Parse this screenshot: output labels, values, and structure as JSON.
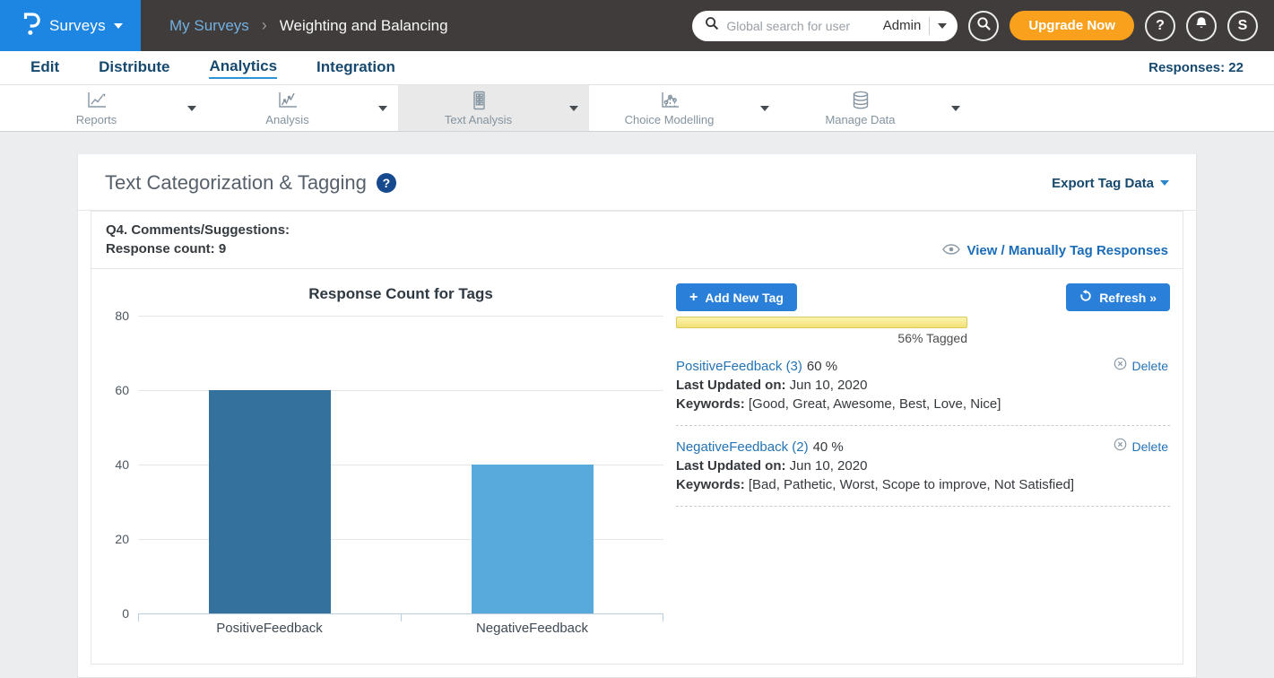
{
  "header": {
    "product": "Surveys",
    "breadcrumb": {
      "parent": "My Surveys",
      "separator": "›",
      "current": "Weighting and Balancing"
    },
    "search": {
      "placeholder": "Global search for user",
      "scope": "Admin"
    },
    "upgrade_label": "Upgrade Now",
    "help_label": "?",
    "avatar_initial": "S"
  },
  "nav": {
    "items": [
      {
        "label": "Edit",
        "active": false
      },
      {
        "label": "Distribute",
        "active": false
      },
      {
        "label": "Analytics",
        "active": true
      },
      {
        "label": "Integration",
        "active": false
      }
    ],
    "responses_label": "Responses: 22"
  },
  "tabs": [
    {
      "label": "Reports",
      "icon": "line-chart-icon",
      "active": false
    },
    {
      "label": "Analysis",
      "icon": "scatter-chart-icon",
      "active": false
    },
    {
      "label": "Text Analysis",
      "icon": "document-grid-icon",
      "active": true
    },
    {
      "label": "Choice Modelling",
      "icon": "choice-chart-icon",
      "active": false
    },
    {
      "label": "Manage Data",
      "icon": "database-icon",
      "active": false
    }
  ],
  "panel": {
    "title": "Text Categorization & Tagging",
    "help_badge": "?",
    "export_label": "Export Tag Data",
    "question_title": "Q4. Comments/Suggestions:",
    "response_count_label": "Response count: 9",
    "view_link_label": "View / Manually Tag Responses",
    "add_tag_label": "Add New Tag",
    "refresh_label": "Refresh »",
    "tagged_label": "56% Tagged",
    "tags": [
      {
        "name": "PositiveFeedback (3)",
        "percent": "60 %",
        "updated_label": "Last Updated on:",
        "updated": "Jun 10, 2020",
        "keywords_label": "Keywords:",
        "keywords": "[Good, Great, Awesome, Best, Love, Nice]",
        "delete_label": "Delete"
      },
      {
        "name": "NegativeFeedback (2)",
        "percent": "40 %",
        "updated_label": "Last Updated on:",
        "updated": "Jun 10, 2020",
        "keywords_label": "Keywords:",
        "keywords": "[Bad, Pathetic, Worst, Scope to improve, Not Satisfied]",
        "delete_label": "Delete"
      }
    ]
  },
  "chart_data": {
    "type": "bar",
    "title": "Response Count for Tags",
    "categories": [
      "PositiveFeedback",
      "NegativeFeedback"
    ],
    "values": [
      60,
      40
    ],
    "xlabel": "",
    "ylabel": "",
    "ylim": [
      0,
      80
    ],
    "yticks": [
      0,
      20,
      40,
      60,
      80
    ],
    "grid": true,
    "legend": false,
    "bar_colors": [
      "#34719d",
      "#57aadb"
    ]
  },
  "colors": {
    "header_bg": "#403c3c",
    "brand_blue": "#1d86e2",
    "upgrade_orange": "#f9a11c",
    "nav_navy": "#17496f",
    "link_blue": "#2473b5",
    "button_blue": "#2a80d9",
    "progress_yellow": "#f2e176",
    "bar_dark": "#34719d",
    "bar_light": "#57aadb"
  }
}
